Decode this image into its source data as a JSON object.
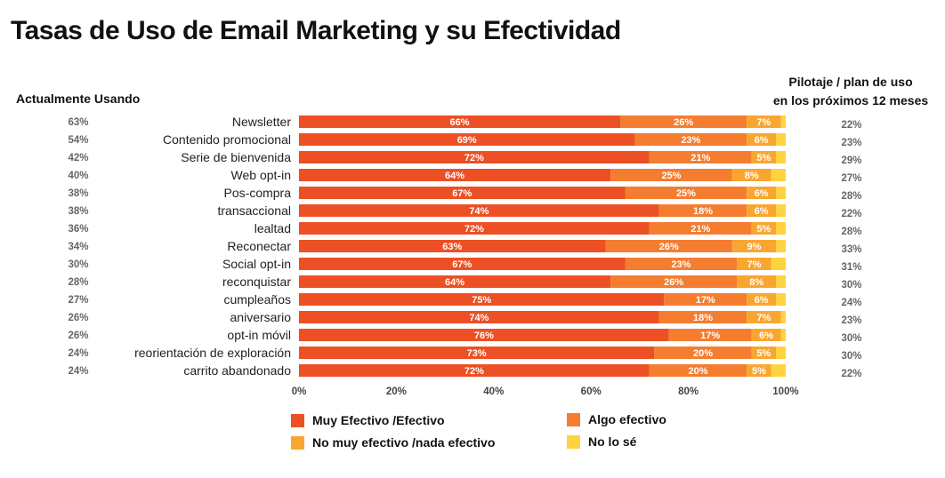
{
  "title": "Tasas de Uso de Email Marketing y su Efectividad",
  "left_header": "Actualmente Usando",
  "right_header_line1": "Pilotaje / plan de uso",
  "right_header_line2": "en los próximos 12 meses",
  "colors": {
    "muy_efectivo": "#EC5024",
    "algo_efectivo": "#F47D30",
    "no_muy_efectivo": "#F9A631",
    "no_lo_se": "#FFD23F",
    "side_text": "#666666",
    "bar_text": "#ffffff"
  },
  "legend": [
    {
      "label": "Muy Efectivo /Efectivo",
      "color": "#EC5024"
    },
    {
      "label": "Algo efectivo",
      "color": "#F47D30"
    },
    {
      "label": "No muy efectivo /nada efectivo",
      "color": "#F9A631"
    },
    {
      "label": "No lo sé",
      "color": "#FFD23F"
    }
  ],
  "chart_data": {
    "type": "bar",
    "orientation": "horizontal",
    "stacked": true,
    "categories": [
      "Newsletter",
      "Contenido promocional",
      "Serie de bienvenida",
      "Web opt-in",
      "Pos-compra",
      "transaccional",
      "lealtad",
      "Reconectar",
      "Social opt-in",
      "reconquistar",
      "cumpleaños",
      "aniversario",
      "opt-in móvil",
      "reorientación de exploración",
      "carrito abandonado"
    ],
    "series": [
      {
        "name": "Muy Efectivo /Efectivo",
        "values": [
          66,
          69,
          72,
          64,
          67,
          74,
          72,
          63,
          67,
          64,
          75,
          74,
          76,
          73,
          72
        ]
      },
      {
        "name": "Algo efectivo",
        "values": [
          26,
          23,
          21,
          25,
          25,
          18,
          21,
          26,
          23,
          26,
          17,
          18,
          17,
          20,
          20
        ]
      },
      {
        "name": "No muy efectivo /nada efectivo",
        "values": [
          7,
          6,
          5,
          8,
          6,
          6,
          5,
          9,
          7,
          8,
          6,
          7,
          6,
          5,
          5
        ]
      },
      {
        "name": "No lo sé",
        "values": [
          1,
          2,
          2,
          3,
          2,
          2,
          2,
          2,
          3,
          2,
          2,
          1,
          1,
          2,
          3
        ]
      }
    ],
    "value_labels": [
      [
        "66%",
        "26%",
        "7%"
      ],
      [
        "69%",
        "23%",
        "6%"
      ],
      [
        "72%",
        "21%",
        "5%"
      ],
      [
        "64%",
        "25%",
        "8%"
      ],
      [
        "67%",
        "25%",
        "6%"
      ],
      [
        "74%",
        "18%",
        "6%"
      ],
      [
        "72%",
        "21%",
        "5%"
      ],
      [
        "63%",
        "26%",
        "9%"
      ],
      [
        "67%",
        "23%",
        "7%"
      ],
      [
        "64%",
        "26%",
        "8%"
      ],
      [
        "75%",
        "17%",
        "6%"
      ],
      [
        "74%",
        "18%",
        "7%"
      ],
      [
        "76%",
        "17%",
        "6%"
      ],
      [
        "73%",
        "20%",
        "5%"
      ],
      [
        "72%",
        "20%",
        "5%"
      ]
    ],
    "currently_using": [
      "63%",
      "54%",
      "42%",
      "40%",
      "38%",
      "38%",
      "36%",
      "34%",
      "30%",
      "28%",
      "27%",
      "26%",
      "26%",
      "24%",
      "24%"
    ],
    "planning": [
      "22%",
      "23%",
      "29%",
      "27%",
      "28%",
      "22%",
      "28%",
      "33%",
      "31%",
      "30%",
      "24%",
      "23%",
      "30%",
      "30%",
      "22%"
    ],
    "xticks": [
      "0%",
      "20%",
      "40%",
      "60%",
      "80%",
      "100%"
    ],
    "xlim": [
      0,
      100
    ],
    "legend_position": "bottom"
  }
}
